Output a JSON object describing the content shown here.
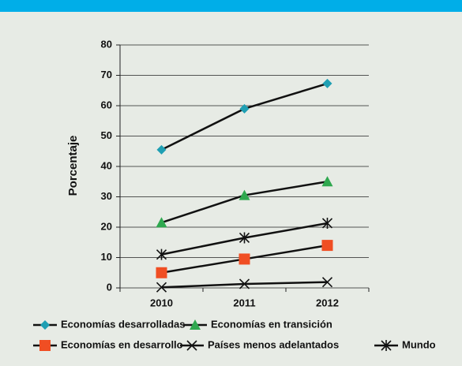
{
  "chart_data": {
    "type": "line",
    "y_label": "Porcentaje",
    "categories": [
      "2010",
      "2011",
      "2012"
    ],
    "series": [
      {
        "name": "Economías desarrolladas",
        "color": "#1f9fb3",
        "marker": "diamond",
        "values": [
          45.5,
          59,
          67.3
        ]
      },
      {
        "name": "Economías en transición",
        "color": "#2fa84f",
        "marker": "triangle",
        "values": [
          21.5,
          30.5,
          35
        ]
      },
      {
        "name": "Economías en desarrollo",
        "color": "#f04e23",
        "marker": "square",
        "values": [
          5,
          9.5,
          14
        ]
      },
      {
        "name": "Países menos adelantados",
        "color": "#111111",
        "marker": "x",
        "values": [
          0.2,
          1.3,
          1.9
        ]
      },
      {
        "name": "Mundo",
        "color": "#111111",
        "marker": "star",
        "values": [
          11,
          16.5,
          21.3
        ]
      }
    ],
    "ylim": [
      0,
      80
    ],
    "yticks": [
      0,
      10,
      20,
      30,
      40,
      50,
      60,
      70,
      80
    ],
    "grid": true
  }
}
